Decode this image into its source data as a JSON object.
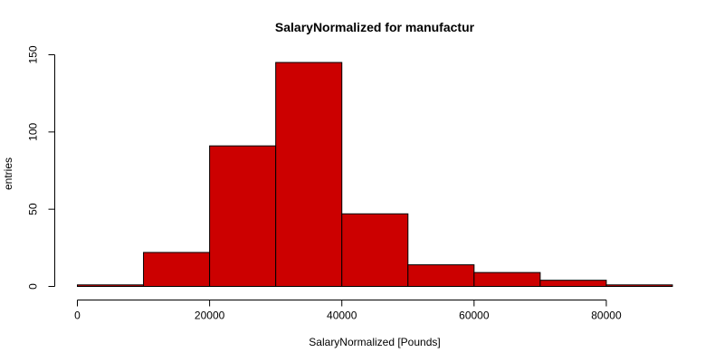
{
  "chart_data": {
    "type": "histogram",
    "title": "SalaryNormalized for manufactur",
    "xlabel": "SalaryNormalized [Pounds]",
    "ylabel": "entries",
    "bar_color": "#cc0000",
    "bins": [
      {
        "start": 0,
        "end": 10000,
        "count": 1
      },
      {
        "start": 10000,
        "end": 20000,
        "count": 22
      },
      {
        "start": 20000,
        "end": 30000,
        "count": 91
      },
      {
        "start": 30000,
        "end": 40000,
        "count": 145
      },
      {
        "start": 40000,
        "end": 50000,
        "count": 47
      },
      {
        "start": 50000,
        "end": 60000,
        "count": 14
      },
      {
        "start": 60000,
        "end": 70000,
        "count": 9
      },
      {
        "start": 70000,
        "end": 80000,
        "count": 4
      },
      {
        "start": 80000,
        "end": 90000,
        "count": 1
      }
    ],
    "xlim": [
      0,
      90000
    ],
    "ylim": [
      0,
      150
    ],
    "x_ticks": [
      0,
      20000,
      40000,
      60000,
      80000
    ],
    "y_ticks": [
      0,
      50,
      100,
      150
    ],
    "grid": false
  }
}
